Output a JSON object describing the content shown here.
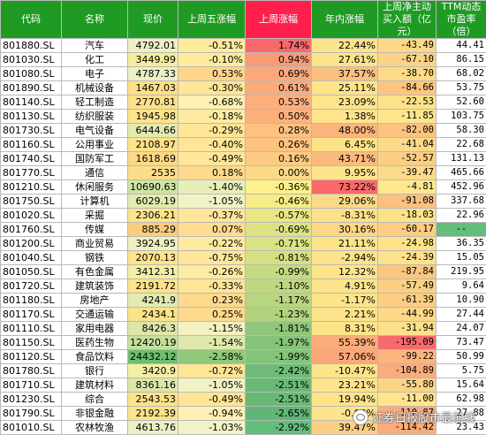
{
  "headers": [
    "代码",
    "名称",
    "现价",
    "上周五涨幅",
    "上周涨幅",
    "年内涨幅",
    "上周净主动买入额（亿元）",
    "TTM动态市盈率（倍）"
  ],
  "rows": [
    [
      "801880.SL",
      "汽车",
      "4792.01",
      "-0.51%",
      "1.74%",
      "22.44%",
      "-43.49",
      "44.41"
    ],
    [
      "801030.SL",
      "化工",
      "3449.99",
      "-0.10%",
      "0.94%",
      "27.61%",
      "-67.10",
      "86.15"
    ],
    [
      "801080.SL",
      "电子",
      "4787.33",
      "0.53%",
      "0.69%",
      "37.57%",
      "-38.70",
      "68.02"
    ],
    [
      "801890.SL",
      "机械设备",
      "1467.03",
      "-0.30%",
      "0.61%",
      "25.11%",
      "-84.66",
      "53.75"
    ],
    [
      "801140.SL",
      "轻工制造",
      "2770.81",
      "-0.68%",
      "0.53%",
      "23.09%",
      "-22.53",
      "52.60"
    ],
    [
      "801130.SL",
      "纺织服装",
      "1945.98",
      "-0.18%",
      "0.50%",
      "1.38%",
      "-11.85",
      "103.75"
    ],
    [
      "801730.SL",
      "电气设备",
      "6444.66",
      "-0.29%",
      "0.28%",
      "48.00%",
      "-82.00",
      "58.30"
    ],
    [
      "801160.SL",
      "公用事业",
      "2108.97",
      "-0.40%",
      "0.26%",
      "6.45%",
      "-41.04",
      "22.68"
    ],
    [
      "801740.SL",
      "国防军工",
      "1618.69",
      "-0.49%",
      "0.16%",
      "43.71%",
      "-52.57",
      "131.13"
    ],
    [
      "801770.SL",
      "通信",
      "2535",
      "0.18%",
      "0.00%",
      "9.95%",
      "-39.47",
      "465.66"
    ],
    [
      "801210.SL",
      "休闲服务",
      "10690.63",
      "-1.40%",
      "-0.36%",
      "73.22%",
      "-4.81",
      "452.96"
    ],
    [
      "801750.SL",
      "计算机",
      "6029.19",
      "-1.05%",
      "-0.46%",
      "29.06%",
      "-91.08",
      "337.68"
    ],
    [
      "801020.SL",
      "采掘",
      "2306.21",
      "-0.37%",
      "-0.57%",
      "-8.31%",
      "-18.03",
      "22.96"
    ],
    [
      "801760.SL",
      "传媒",
      "885.29",
      "0.07%",
      "-0.69%",
      "30.16%",
      "-60.17",
      "--"
    ],
    [
      "801200.SL",
      "商业贸易",
      "3924.95",
      "-0.22%",
      "-0.71%",
      "21.11%",
      "-24.98",
      "36.35"
    ],
    [
      "801040.SL",
      "钢铁",
      "2070.13",
      "-0.75%",
      "-0.81%",
      "-2.94%",
      "-24.39",
      "15.05"
    ],
    [
      "801050.SL",
      "有色金属",
      "3412.31",
      "-0.26%",
      "-0.99%",
      "12.32%",
      "-87.84",
      "219.95"
    ],
    [
      "801720.SL",
      "建筑装饰",
      "2191.72",
      "-0.33%",
      "-1.10%",
      "4.91%",
      "-57.49",
      "9.64"
    ],
    [
      "801180.SL",
      "房地产",
      "4241.9",
      "0.23%",
      "-1.17%",
      "-1.17%",
      "-61.39",
      "10.90"
    ],
    [
      "801170.SL",
      "交通运输",
      "2434.1",
      "0.25%",
      "-1.23%",
      "2.21%",
      "-44.99",
      "27.44"
    ],
    [
      "801110.SL",
      "家用电器",
      "8426.3",
      "-1.15%",
      "-1.81%",
      "8.31%",
      "-31.94",
      "24.07"
    ],
    [
      "801150.SL",
      "医药生物",
      "12420.19",
      "-1.54%",
      "-1.97%",
      "55.39%",
      "-195.09",
      "73.47"
    ],
    [
      "801120.SL",
      "食品饮料",
      "24432.12",
      "-2.58%",
      "-1.99%",
      "57.06%",
      "-99.22",
      "50.99"
    ],
    [
      "801780.SL",
      "银行",
      "3420.9",
      "-0.72%",
      "-2.42%",
      "-10.47%",
      "-104.89",
      "5.75"
    ],
    [
      "801710.SL",
      "建筑材料",
      "8361.16",
      "-1.05%",
      "-2.51%",
      "23.21%",
      "-55.80",
      "15.64"
    ],
    [
      "801230.SL",
      "综合",
      "2543.53",
      "-0.49%",
      "-2.51%",
      "19.94%",
      "-11.00",
      "62.98"
    ],
    [
      "801790.SL",
      "非银金融",
      "2192.39",
      "-0.94%",
      "-2.65%",
      "-0.08%",
      "-110.87",
      "27.88"
    ],
    [
      "801010.SL",
      "农林牧渔",
      "4613.76",
      "-1.03%",
      "-2.92%",
      "39.47%",
      "-114.42",
      "23.43"
    ]
  ],
  "cell_colors": {
    "price": [
      "#edf0c4",
      "#f6ec9a",
      "#edf0c4",
      "#fcdf88",
      "#fde089",
      "#fde38a",
      "#e2ebb0",
      "#fce28a",
      "#fcd986",
      "#fddd88",
      "#cde4a2",
      "#e3ebb0",
      "#fde48a",
      "#fbcc7f",
      "#f0f1c0",
      "#fde48a",
      "#f3efa5",
      "#fde28a",
      "#e2ebb0",
      "#fce28a",
      "#dce7aa",
      "#c4e09e",
      "#6dbe6f",
      "#f3efa5",
      "#dce7aa",
      "#fce28a",
      "#fde28a",
      "#edf0c4"
    ],
    "friday": [
      "#ffeb9c",
      "#ffeb9c",
      "#ffd58a",
      "#ffe596",
      "#fff0b3",
      "#ffeba0",
      "#ffe596",
      "#ffe598",
      "#ffe69a",
      "#ffd98c",
      "#e7efb8",
      "#f1f3c6",
      "#ffe69a",
      "#ffdc8f",
      "#ffeba0",
      "#ffe69a",
      "#ffeba0",
      "#ffe596",
      "#ffd98c",
      "#ffd98c",
      "#f3f1c0",
      "#dfe9ac",
      "#90c97a",
      "#ffe596",
      "#f1f3c6",
      "#ffe596",
      "#fff0b3",
      "#f1f3c6"
    ],
    "week": [
      "#f8696b",
      "#fb9a76",
      "#fca87a",
      "#fcab7b",
      "#fcaf7c",
      "#fcb17c",
      "#fdc27f",
      "#fdc380",
      "#fdcb82",
      "#fed985",
      "#fef189",
      "#f5ec88",
      "#e8e783",
      "#dde383",
      "#dbe283",
      "#d5e083",
      "#c6db80",
      "#bfd880",
      "#b8d57f",
      "#b2d27f",
      "#8fc67b",
      "#87c37a",
      "#84c37a",
      "#6fbb77",
      "#69b976",
      "#69b976",
      "#60b675",
      "#63be7b"
    ],
    "year": [
      "#fde48a",
      "#fde48a",
      "#fcc07f",
      "#fde48a",
      "#fde58b",
      "#fee48a",
      "#fcb47d",
      "#fde388",
      "#fcb97e",
      "#fde48a",
      "#f9696b",
      "#fcd986",
      "#fde08a",
      "#fdd786",
      "#fde48a",
      "#fde28a",
      "#fde48a",
      "#fde48a",
      "#fde48a",
      "#fde48a",
      "#fde48a",
      "#fcac7b",
      "#fca77a",
      "#fde48a",
      "#fde48a",
      "#fde48a",
      "#fde48a",
      "#fdcf84"
    ],
    "net": [
      "#fcd887",
      "#fcd386",
      "#fcda87",
      "#fcc57f",
      "#fde28a",
      "#fee58b",
      "#fcc380",
      "#fcd988",
      "#fcce84",
      "#fcdb88",
      "#ffe88c",
      "#fcc07f",
      "#fde28a",
      "#fccd83",
      "#fde28a",
      "#fde28a",
      "#fbc780",
      "#fbd083",
      "#fbce83",
      "#fcd887",
      "#fde08a",
      "#f8696b",
      "#fcb57d",
      "#fbac7b",
      "#fcd385",
      "#ffe58b",
      "#fbac7b",
      "#fbac7b"
    ],
    "pe": [
      "#ffffff",
      "#ffffff",
      "#ffffff",
      "#ffffff",
      "#ffffff",
      "#ffffff",
      "#ffffff",
      "#ffffff",
      "#ffffff",
      "#ffffff",
      "#ffffff",
      "#ffffff",
      "#ffffff",
      "#63be7b",
      "#ffffff",
      "#ffffff",
      "#ffffff",
      "#ffffff",
      "#ffffff",
      "#ffffff",
      "#ffffff",
      "#ffffff",
      "#ffffff",
      "#ffffff",
      "#ffffff",
      "#ffffff",
      "#ffffff",
      "#ffffff"
    ]
  },
  "header_colors": {
    "normal": "#1f9b24",
    "highlight": "#ff1f4d"
  },
  "watermark": "证券日报股市最前线"
}
